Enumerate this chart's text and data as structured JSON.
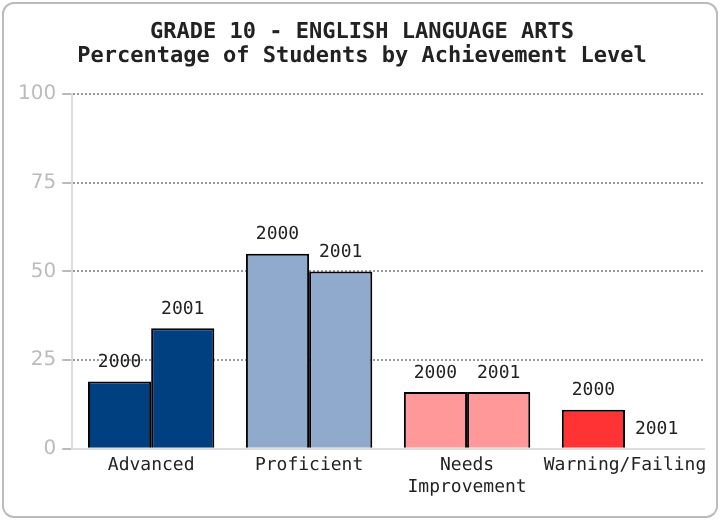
{
  "chart_data": {
    "type": "bar",
    "title": "GRADE 10 - ENGLISH LANGUAGE ARTS",
    "subtitle": "Percentage of Students by Achievement Level",
    "categories": [
      "Advanced",
      "Proficient",
      "Needs Improvement",
      "Warning/Failing"
    ],
    "series": [
      {
        "name": "2000",
        "colors": [
          "#004080",
          "#8faacc",
          "#ff9999",
          "#ff3333"
        ],
        "values": [
          19,
          55,
          16,
          11
        ]
      },
      {
        "name": "2001",
        "colors": [
          "#004080",
          "#8faacc",
          "#ff9999",
          "#ff3333"
        ],
        "values": [
          34,
          50,
          16,
          0
        ]
      }
    ],
    "ylim": [
      0,
      100
    ],
    "yticks": [
      0,
      25,
      50,
      75,
      100
    ],
    "grid": "y",
    "legend": false
  }
}
